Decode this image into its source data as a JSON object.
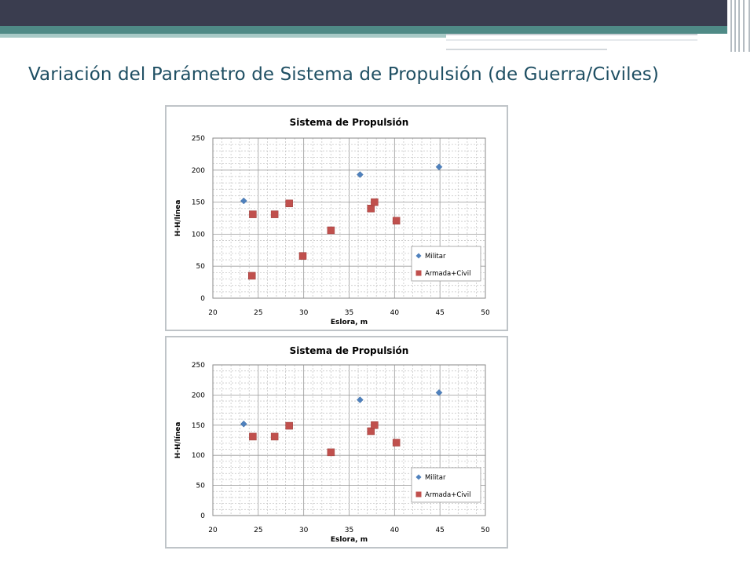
{
  "slide": {
    "title": "Variación del Parámetro de Sistema de Propulsión (de Guerra/Civiles)"
  },
  "colors": {
    "militar": "#4f81bd",
    "civil": "#c0504d",
    "title": "#1f4f63"
  },
  "chart_data": [
    {
      "type": "scatter",
      "title": "Sistema de Propulsión",
      "xlabel": "Eslora, m",
      "ylabel": "H-H/línea",
      "xlim": [
        20,
        50
      ],
      "ylim": [
        0,
        250
      ],
      "xticks": [
        "20",
        "25",
        "30",
        "35",
        "40",
        "45",
        "50"
      ],
      "yticks": [
        "0",
        "50",
        "100",
        "150",
        "200",
        "250"
      ],
      "grid": true,
      "legend_position": "bottom-right",
      "series": [
        {
          "name": "Militar",
          "marker": "diamond",
          "x": [
            23.4,
            36.2,
            44.9
          ],
          "y": [
            152,
            193,
            205
          ]
        },
        {
          "name": "Armada+Civil",
          "marker": "square",
          "x": [
            24.4,
            26.8,
            28.4,
            24.3,
            29.9,
            33.0,
            37.4,
            37.8,
            40.2
          ],
          "y": [
            131,
            131,
            148,
            35,
            66,
            106,
            140,
            150,
            121
          ]
        }
      ]
    },
    {
      "type": "scatter",
      "title": "Sistema de Propulsión",
      "xlabel": "Eslora, m",
      "ylabel": "H-H/línea",
      "xlim": [
        20,
        50
      ],
      "ylim": [
        0,
        250
      ],
      "xticks": [
        "20",
        "25",
        "30",
        "35",
        "40",
        "45",
        "50"
      ],
      "yticks": [
        "0",
        "50",
        "100",
        "150",
        "200",
        "250"
      ],
      "grid": true,
      "legend_position": "bottom-right",
      "series": [
        {
          "name": "Militar",
          "marker": "diamond",
          "x": [
            23.4,
            36.2,
            44.9
          ],
          "y": [
            152,
            192,
            204
          ]
        },
        {
          "name": "Armada+Civil",
          "marker": "square",
          "x": [
            24.4,
            26.8,
            28.4,
            33.0,
            37.4,
            37.8,
            40.2
          ],
          "y": [
            131,
            131,
            149,
            105,
            140,
            150,
            121
          ]
        }
      ]
    }
  ]
}
